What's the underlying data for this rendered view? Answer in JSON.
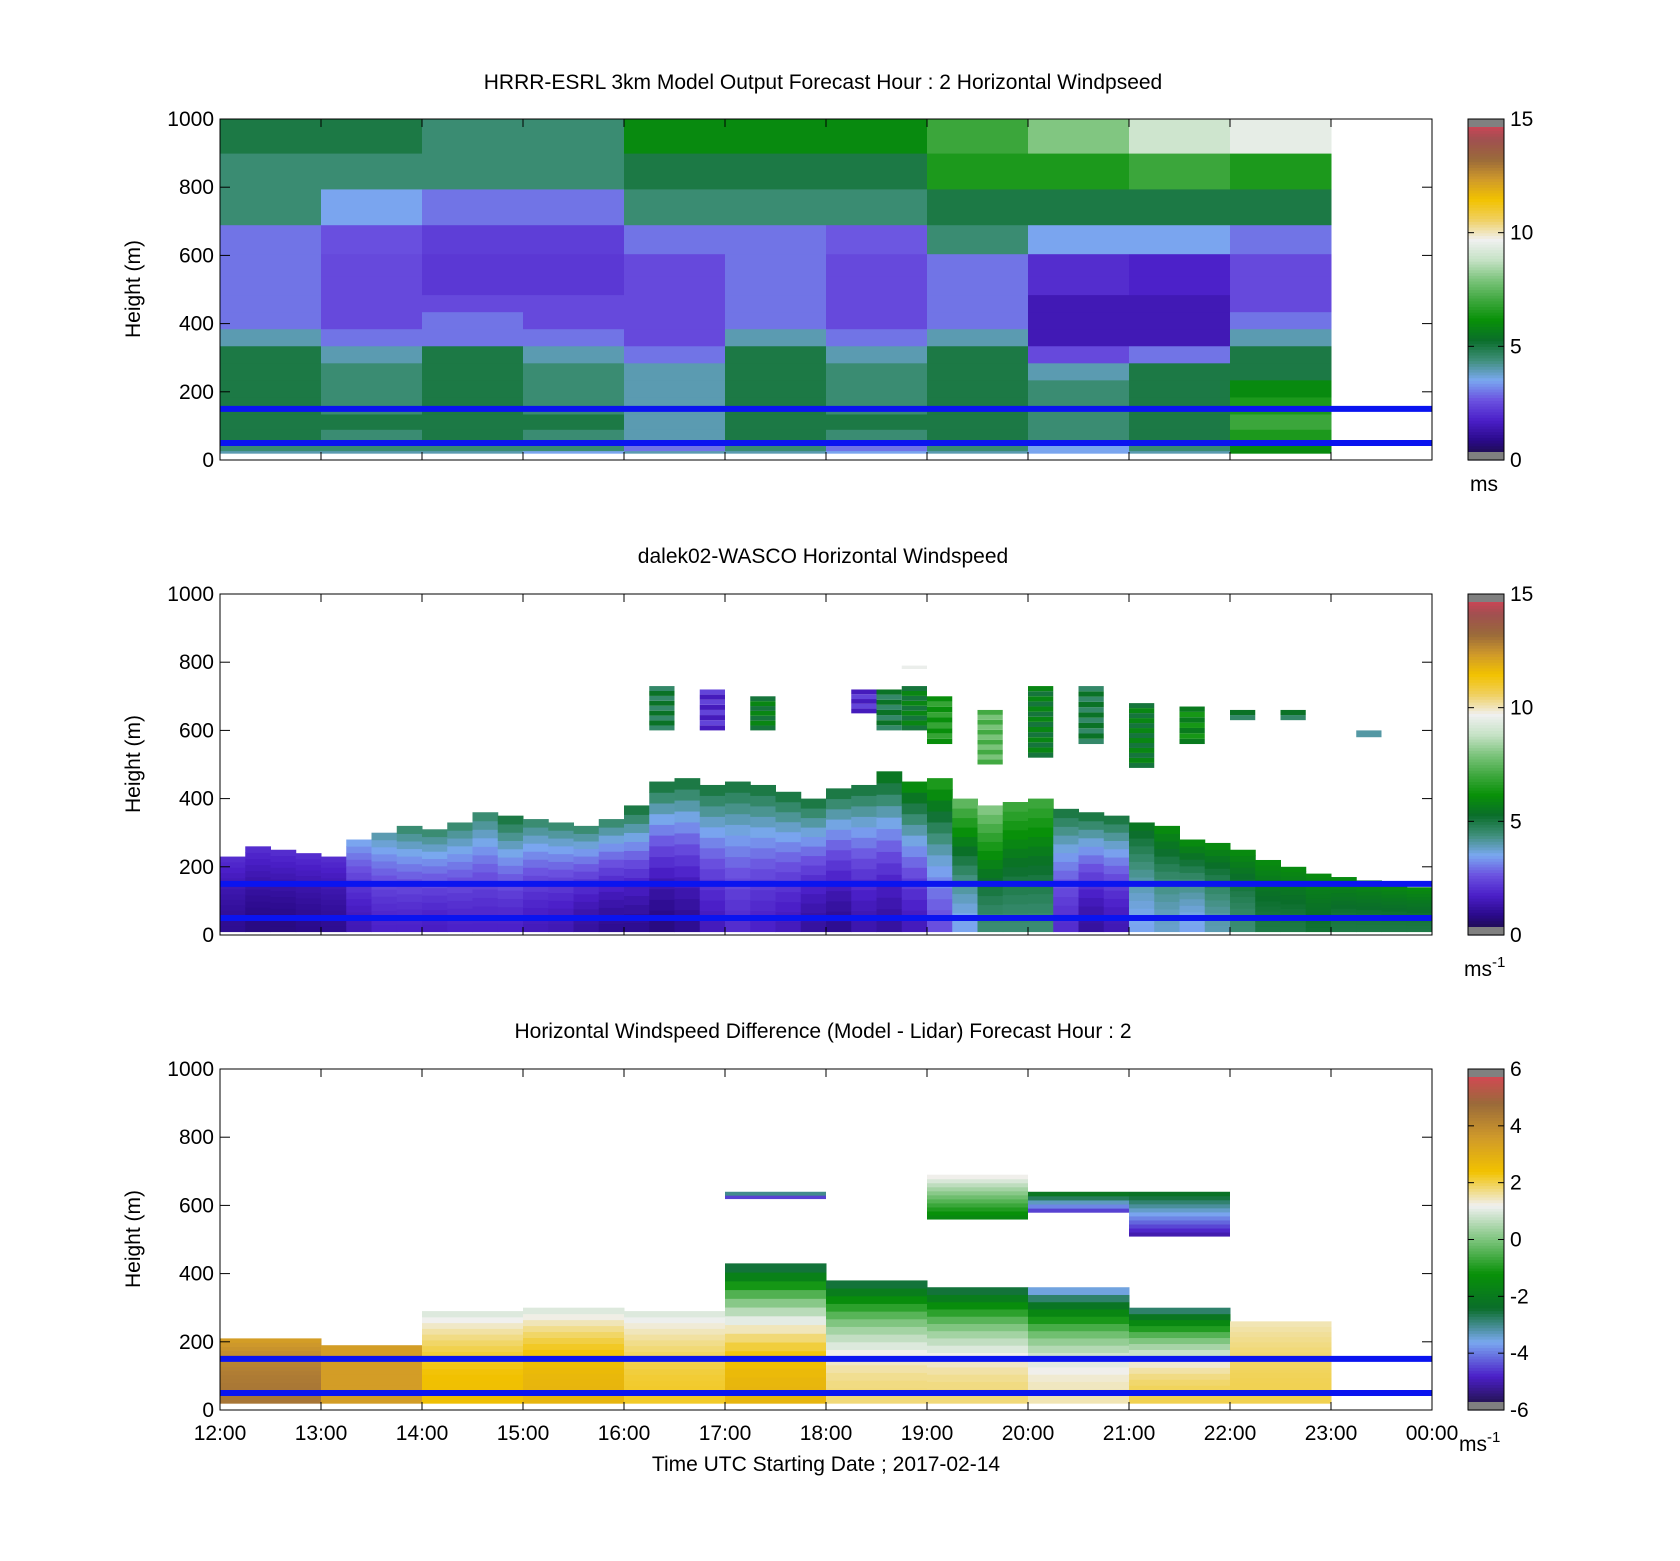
{
  "figure": {
    "xaxis_label": "Time UTC  Starting Date ; 2017-02-14",
    "xtick_labels": [
      "12:00",
      "13:00",
      "14:00",
      "15:00",
      "16:00",
      "17:00",
      "18:00",
      "19:00",
      "20:00",
      "21:00",
      "22:00",
      "23:00",
      "00:00"
    ],
    "reference_lines_height_m": [
      150,
      50
    ],
    "reference_line_color": "#0a14f0"
  },
  "colors": {
    "windspeed_scale": [
      "#1a1033",
      "#2a0a8a",
      "#4b1fc8",
      "#6b52e0",
      "#7aa8f0",
      "#3f8f7a",
      "#0a6e2a",
      "#089108",
      "#3fa83f",
      "#7cc47c",
      "#c6e2c6",
      "#f0f0f0",
      "#f0d060",
      "#f2c200",
      "#d09a2a",
      "#9a6a3a",
      "#a05050",
      "#e0405a"
    ],
    "difference_scale": [
      "#1a1033",
      "#4b1fc8",
      "#7aa8f0",
      "#0a6e2a",
      "#089108",
      "#7cc47c",
      "#f0f0f0",
      "#f2c200",
      "#d09a2a",
      "#9a6a3a",
      "#e0405a"
    ]
  },
  "chart_data": [
    {
      "type": "heatmap",
      "title": "HRRR-ESRL 3km Model Output   Forecast Hour : 2 Horizontal Windpseed",
      "ylabel": "Height (m)",
      "ylim": [
        0,
        1000
      ],
      "yticks": [
        0,
        200,
        400,
        600,
        800,
        1000
      ],
      "xlim": [
        12,
        24
      ],
      "colorbar": {
        "range": [
          0,
          15
        ],
        "ticks": [
          0,
          5,
          10,
          15
        ],
        "unit": "ms"
      },
      "x_hours": [
        12,
        13,
        14,
        15,
        16,
        17,
        18,
        19,
        20,
        21,
        22
      ],
      "heights_m": [
        15,
        40,
        70,
        110,
        160,
        210,
        260,
        310,
        360,
        410,
        460,
        510,
        570,
        640,
        740,
        850,
        950
      ],
      "values": [
        [
          4,
          4,
          4,
          3.5,
          4,
          4,
          3.5,
          4,
          3.5,
          4,
          6
        ],
        [
          4.5,
          4.5,
          4.5,
          4.5,
          3,
          4.5,
          3,
          4.5,
          3.5,
          4.5,
          6
        ],
        [
          5,
          4.5,
          5,
          4.5,
          4,
          5,
          4.5,
          5,
          4.5,
          5,
          6.5
        ],
        [
          5,
          5,
          5,
          5,
          4,
          5,
          5,
          5,
          4.5,
          5,
          7
        ],
        [
          5,
          4.5,
          5,
          4.5,
          4,
          5,
          4.5,
          5,
          4.5,
          5,
          6.5
        ],
        [
          5,
          4.5,
          5,
          4.5,
          4,
          5,
          4.5,
          5,
          4.5,
          5,
          6
        ],
        [
          5,
          4.5,
          5,
          4.5,
          4,
          5,
          4.5,
          5,
          4,
          5,
          5
        ],
        [
          5,
          4,
          5,
          4,
          3,
          5,
          4,
          5,
          2.5,
          3,
          5
        ],
        [
          4,
          3,
          3,
          3,
          2.5,
          4,
          3,
          4,
          1.5,
          1.5,
          4
        ],
        [
          3,
          2.5,
          3,
          2.5,
          2.5,
          3,
          2.5,
          3,
          1.5,
          1.5,
          3
        ],
        [
          3,
          2.5,
          2.5,
          2.5,
          2.5,
          3,
          2.5,
          3,
          1.5,
          1.5,
          2.5
        ],
        [
          3,
          2.5,
          2.2,
          2.2,
          2.5,
          3,
          2.5,
          3,
          2,
          1.8,
          2.5
        ],
        [
          3,
          2.5,
          2.2,
          2.2,
          2.5,
          3,
          2.5,
          3,
          2,
          1.8,
          2.5
        ],
        [
          3,
          2.6,
          2.3,
          2.3,
          3,
          3,
          2.7,
          4.5,
          3.5,
          3.5,
          3
        ],
        [
          4.5,
          3.5,
          3,
          3,
          4.5,
          4.5,
          4.5,
          5,
          5,
          5,
          5
        ],
        [
          4.5,
          4.5,
          4.5,
          4.5,
          5,
          5,
          5,
          6.5,
          6.5,
          7,
          6.5
        ],
        [
          5,
          5,
          4.5,
          4.5,
          6,
          6,
          6,
          7,
          8,
          9,
          9.5
        ]
      ]
    },
    {
      "type": "heatmap",
      "title": "dalek02-WASCO  Horizontal Windspeed",
      "ylabel": "Height (m)",
      "ylim": [
        0,
        1000
      ],
      "yticks": [
        0,
        200,
        400,
        600,
        800,
        1000
      ],
      "xlim": [
        12,
        24
      ],
      "colorbar": {
        "range": [
          0,
          15
        ],
        "ticks": [
          0,
          5,
          10,
          15
        ],
        "unit": "ms",
        "unit_exponent": "-1"
      },
      "x_hours": [
        12,
        12.25,
        12.5,
        12.75,
        13,
        13.25,
        13.5,
        13.75,
        14,
        14.25,
        14.5,
        14.75,
        15,
        15.25,
        15.5,
        15.75,
        16,
        16.25,
        16.5,
        16.75,
        17,
        17.25,
        17.5,
        17.75,
        18,
        18.25,
        18.5,
        18.75,
        19,
        19.25,
        19.5,
        19.75,
        20,
        20.25,
        20.5,
        20.75,
        21,
        21.25,
        21.5,
        21.75,
        22,
        22.25,
        22.5,
        22.75,
        23,
        23.25,
        23.5,
        23.75
      ],
      "profile_tops_m": [
        230,
        260,
        250,
        240,
        230,
        280,
        300,
        320,
        310,
        330,
        360,
        350,
        340,
        330,
        320,
        340,
        380,
        450,
        460,
        440,
        450,
        440,
        420,
        400,
        430,
        440,
        480,
        450,
        460,
        400,
        380,
        390,
        400,
        370,
        360,
        350,
        330,
        320,
        280,
        270,
        250,
        220,
        200,
        180,
        170,
        160,
        150,
        140
      ],
      "low_level_speed": [
        1,
        0.8,
        0.8,
        0.9,
        1,
        1.5,
        1.8,
        1.8,
        1.7,
        1.8,
        1.8,
        1.8,
        1.6,
        1.5,
        1.2,
        1.0,
        1.0,
        0.8,
        1.0,
        1.6,
        2.0,
        1.8,
        1.6,
        1.2,
        1.0,
        1.4,
        1.2,
        1.6,
        2.6,
        3.5,
        4.5,
        4.5,
        4.5,
        2.0,
        1.2,
        1.5,
        3.5,
        3.8,
        3.5,
        4.0,
        4.5,
        5,
        5,
        5.2,
        5,
        5,
        5,
        5
      ],
      "upper_level_speed": [
        2,
        2,
        2,
        2,
        2,
        3.5,
        4,
        4.5,
        4.5,
        4.5,
        4.5,
        5,
        4.5,
        4.5,
        4.5,
        4.5,
        5,
        5,
        5,
        5,
        5,
        5,
        5,
        5,
        5,
        5,
        5.5,
        6,
        6.5,
        7.5,
        8,
        7,
        7,
        5,
        5,
        5,
        5.5,
        6,
        6,
        6,
        6,
        6,
        6,
        6,
        6,
        6,
        6,
        6
      ],
      "aloft_segments": [
        {
          "x": 16.25,
          "h0": 600,
          "h1": 730,
          "speed": 5
        },
        {
          "x": 16.75,
          "h0": 600,
          "h1": 720,
          "speed": 2
        },
        {
          "x": 17.25,
          "h0": 600,
          "h1": 700,
          "speed": 5.5
        },
        {
          "x": 18.25,
          "h0": 650,
          "h1": 720,
          "speed": 2
        },
        {
          "x": 18.5,
          "h0": 600,
          "h1": 720,
          "speed": 5
        },
        {
          "x": 18.75,
          "h0": 600,
          "h1": 730,
          "speed": 5.5
        },
        {
          "x": 19,
          "h0": 560,
          "h1": 700,
          "speed": 6.5
        },
        {
          "x": 19.5,
          "h0": 500,
          "h1": 660,
          "speed": 7.5
        },
        {
          "x": 20,
          "h0": 520,
          "h1": 730,
          "speed": 5.5
        },
        {
          "x": 20.5,
          "h0": 560,
          "h1": 730,
          "speed": 5
        },
        {
          "x": 21,
          "h0": 490,
          "h1": 680,
          "speed": 5.5
        },
        {
          "x": 21.5,
          "h0": 560,
          "h1": 670,
          "speed": 6
        },
        {
          "x": 22,
          "h0": 630,
          "h1": 660,
          "speed": 5
        },
        {
          "x": 22.5,
          "h0": 630,
          "h1": 660,
          "speed": 5
        },
        {
          "x": 23.25,
          "h0": 580,
          "h1": 600,
          "speed": 4.5
        },
        {
          "x": 18.75,
          "h0": 780,
          "h1": 790,
          "speed": 10
        }
      ]
    },
    {
      "type": "heatmap",
      "title": "Horizontal Windspeed Difference (Model - Lidar) Forecast Hour : 2",
      "ylabel": "Height (m)",
      "ylim": [
        0,
        1000
      ],
      "yticks": [
        0,
        200,
        400,
        600,
        800,
        1000
      ],
      "xlim": [
        12,
        24
      ],
      "colorbar": {
        "range": [
          -6,
          6
        ],
        "ticks": [
          -6,
          -4,
          -2,
          0,
          2,
          4,
          6
        ],
        "unit": "ms",
        "unit_exponent": "-1"
      },
      "x_hours": [
        12,
        13,
        14,
        15,
        16,
        17,
        18,
        19,
        20,
        21,
        22
      ],
      "profile_tops_m": [
        210,
        190,
        290,
        300,
        290,
        430,
        380,
        360,
        360,
        300,
        260
      ],
      "low_values": [
        4.5,
        3.5,
        2.5,
        2.8,
        2.2,
        2.8,
        1.8,
        1.8,
        1.5,
        2,
        2
      ],
      "top_values": [
        3.5,
        3.5,
        1,
        1,
        1,
        -2.5,
        -2.5,
        -2.5,
        -3.5,
        -2.8,
        1.5
      ],
      "aloft_segments": [
        {
          "x": 17,
          "h0": 620,
          "h1": 640,
          "value": -3
        },
        {
          "x": 19,
          "h0": 560,
          "h1": 690,
          "value": 0
        },
        {
          "x": 20,
          "h0": 580,
          "h1": 640,
          "value": -3
        },
        {
          "x": 21,
          "h0": 510,
          "h1": 640,
          "value": -3.5
        }
      ]
    }
  ]
}
